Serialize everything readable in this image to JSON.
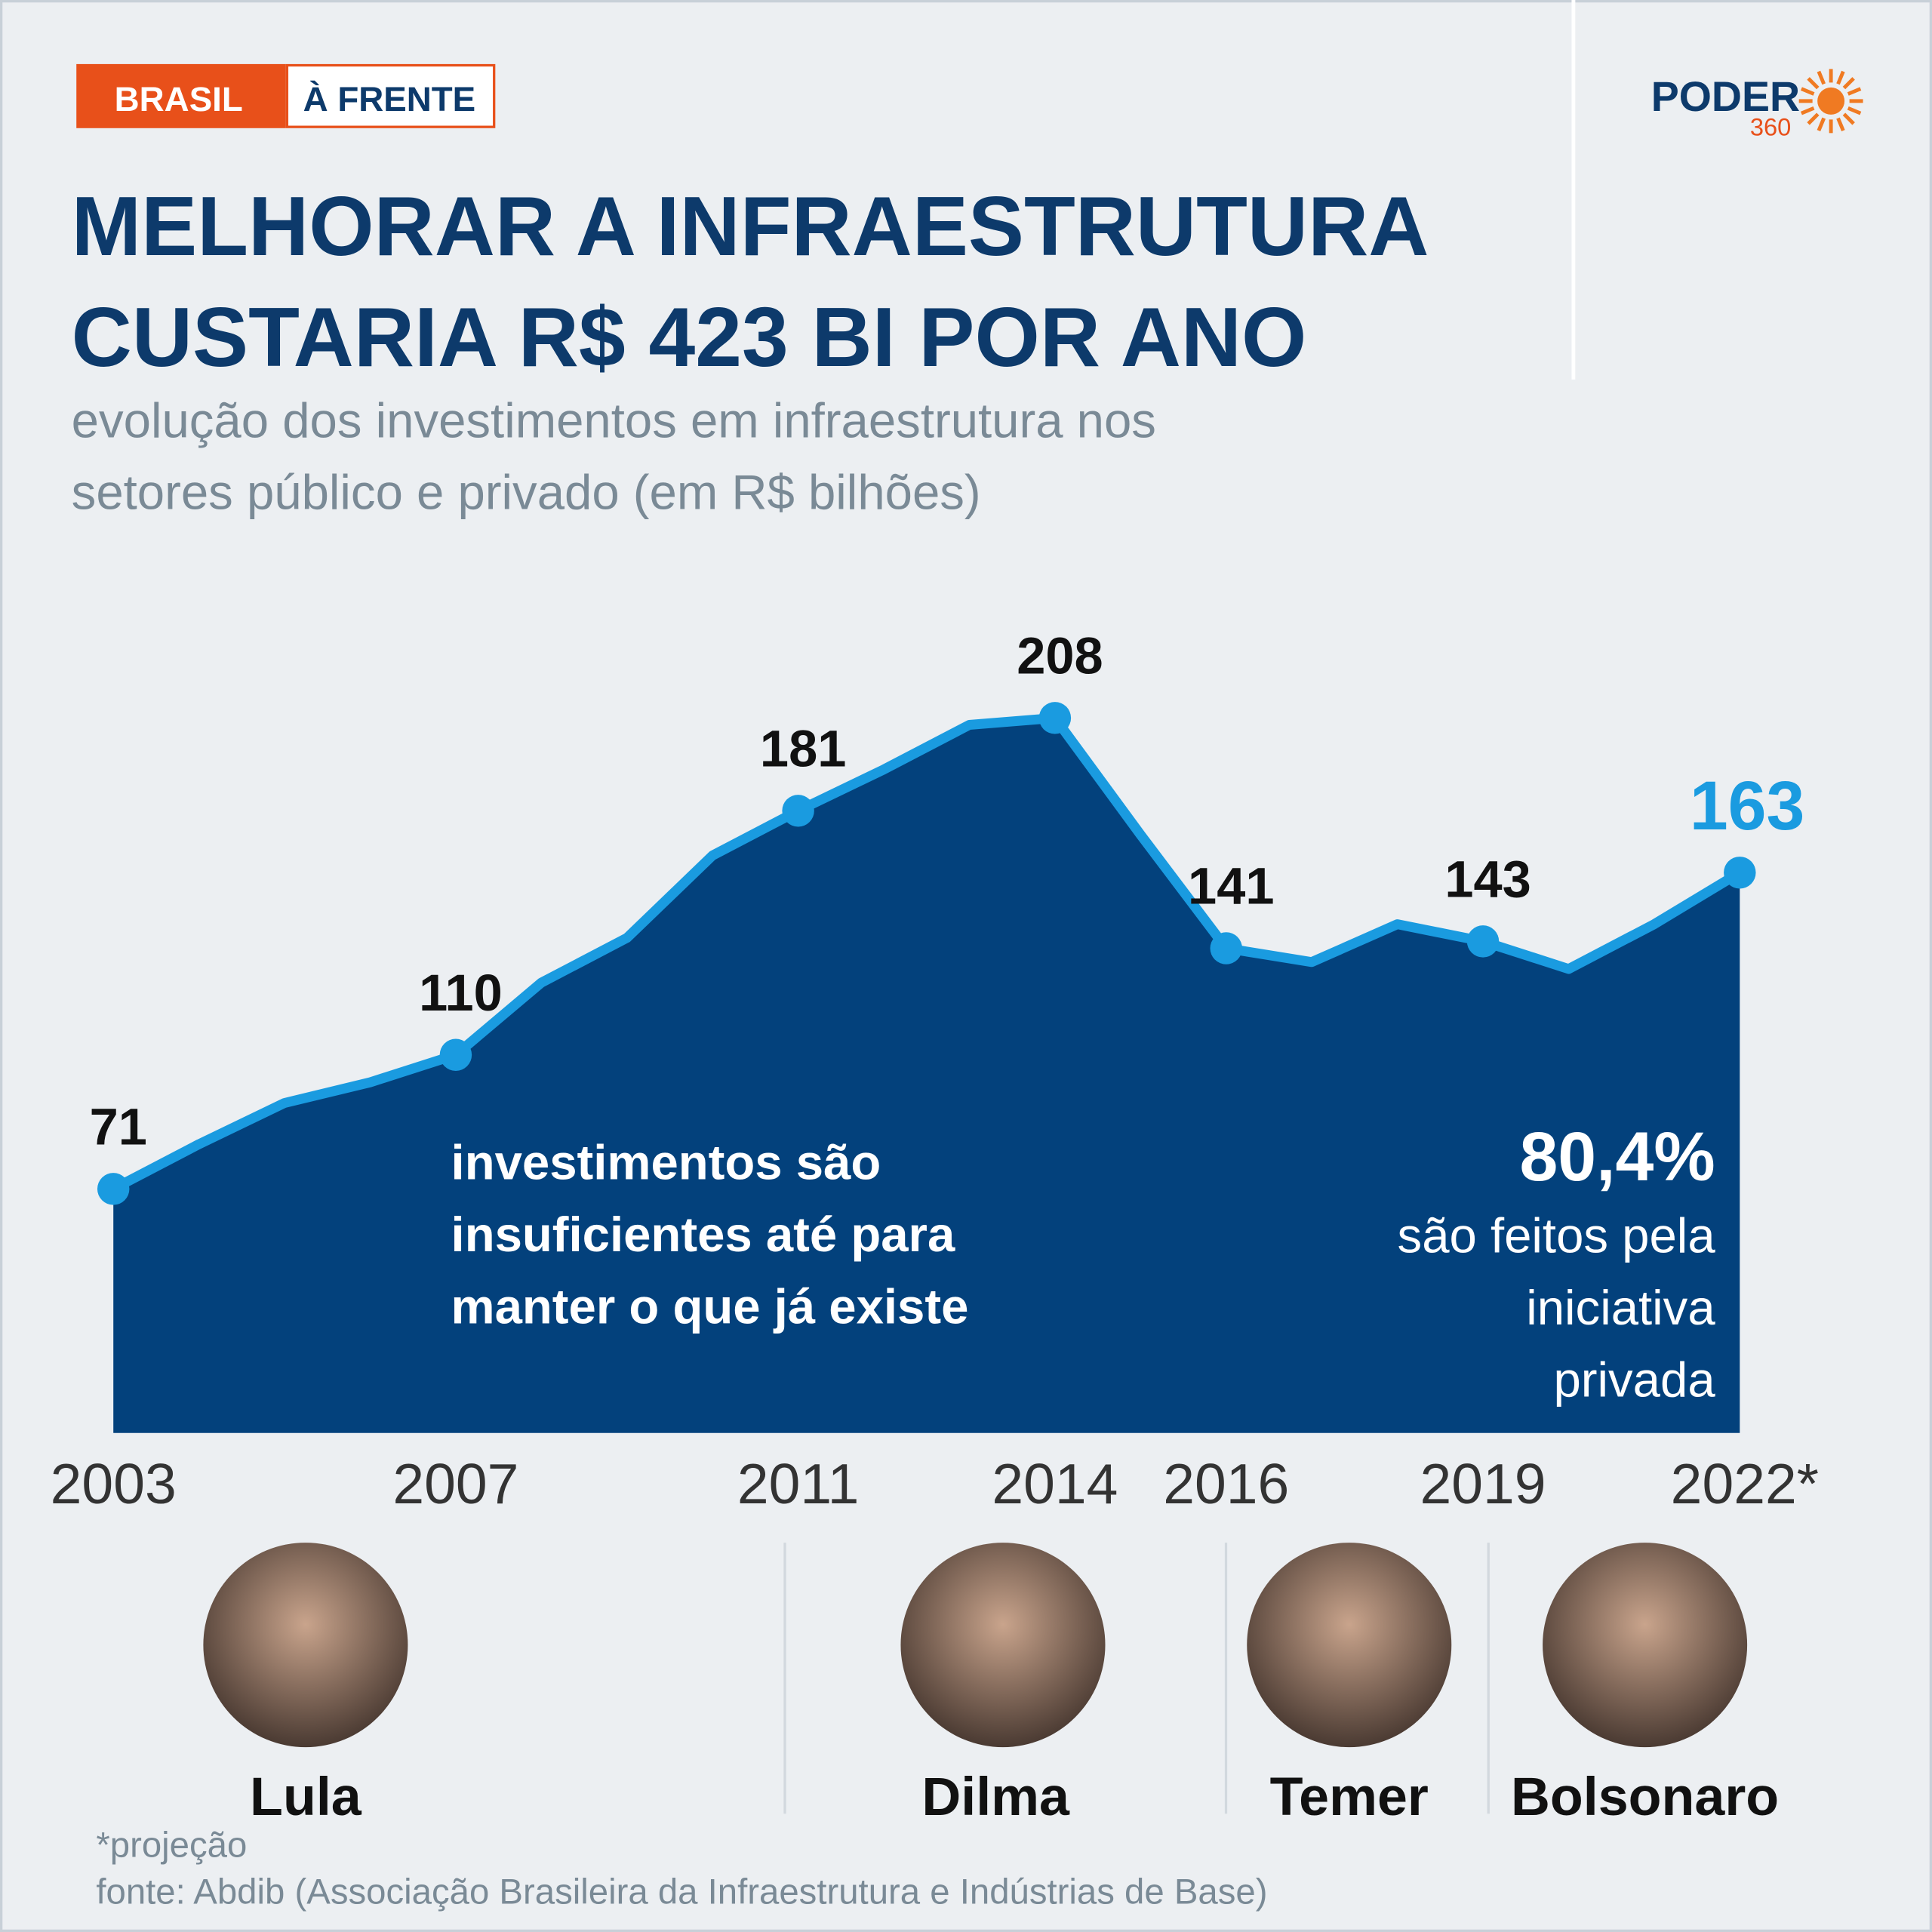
{
  "header": {
    "tag": [
      "BRASIL",
      "À FRENTE"
    ],
    "logo": {
      "name": "PODER",
      "number": "360"
    }
  },
  "chart_data": {
    "type": "area",
    "title": [
      "MELHORAR A INFRAESTRUTURA",
      "CUSTARIA R$ 423 BI POR ANO"
    ],
    "subtitle": [
      "evolução dos investimentos em infraestrutura nos",
      "setores público e privado (em R$ bilhões)"
    ],
    "categories": [
      "2003",
      null,
      null,
      null,
      "2007",
      null,
      null,
      null,
      "2011",
      null,
      null,
      "2014",
      null,
      "2016",
      null,
      null,
      "2019",
      null,
      null,
      "2022*"
    ],
    "values": [
      71,
      84,
      96,
      102,
      110,
      131,
      144,
      168,
      181,
      193,
      206,
      208,
      174,
      141,
      137,
      148,
      143,
      135,
      148,
      163
    ],
    "color": "#03417c",
    "line_color": "#1a9be0",
    "annotations": [
      {
        "lines": [
          "investimentos são",
          "insuficientes até para",
          "manter o que já existe"
        ]
      },
      {
        "lines": [
          "80,4%",
          "são feitos pela",
          "iniciativa",
          "privada"
        ]
      }
    ]
  },
  "presidents": [
    "Lula",
    "Dilma",
    "Temer",
    "Bolsonaro"
  ],
  "footnotes": [
    "*projeção",
    "fonte: Abdib (Associação Brasileira da Infraestrutura e Indústrias de Base)"
  ]
}
